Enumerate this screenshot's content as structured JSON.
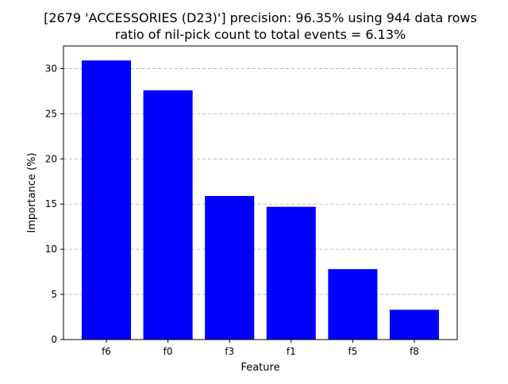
{
  "chart_data": {
    "type": "bar",
    "title_lines": [
      "[2679 'ACCESSORIES (D23)'] precision: 96.35% using 944 data rows",
      "ratio of nil-pick count to total events = 6.13%"
    ],
    "xlabel": "Feature",
    "ylabel": "Importance (%)",
    "categories": [
      "f6",
      "f0",
      "f3",
      "f1",
      "f5",
      "f8"
    ],
    "values": [
      30.9,
      27.6,
      15.9,
      14.7,
      7.8,
      3.3
    ],
    "ylim": [
      0,
      32.5
    ],
    "yticks": [
      0,
      5,
      10,
      15,
      20,
      25,
      30
    ],
    "grid": "y-axis dashed",
    "bar_color": "#0000ff"
  }
}
